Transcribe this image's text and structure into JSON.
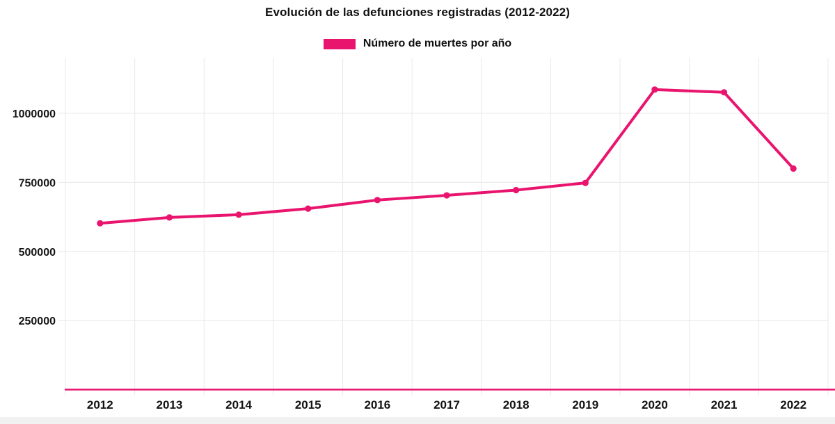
{
  "chart_data": {
    "type": "line",
    "title": "Evolución de las defunciones registradas (2012-2022)",
    "legend": {
      "label": "Número de muertes por año",
      "position": "top"
    },
    "categories": [
      "2012",
      "2013",
      "2014",
      "2015",
      "2016",
      "2017",
      "2018",
      "2019",
      "2020",
      "2021",
      "2022"
    ],
    "series": [
      {
        "name": "Número de muertes por año",
        "color": "#E9146E",
        "values": [
          602000,
          623000,
          633000,
          655000,
          686000,
          703000,
          722000,
          748000,
          1086000,
          1076000,
          800000
        ]
      }
    ],
    "xlabel": "",
    "ylabel": "",
    "ylim": [
      0,
      1200000
    ],
    "yticks": [
      250000,
      500000,
      750000,
      1000000
    ],
    "grid": true,
    "legend_position": "top",
    "colors": {
      "grid": "#e8e8e8",
      "axis_line": "#E9146E",
      "tick_text": "#141414",
      "background": "#ffffff"
    }
  }
}
